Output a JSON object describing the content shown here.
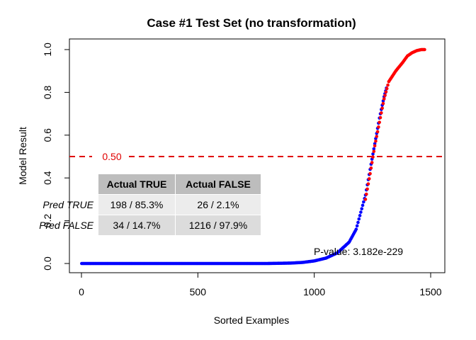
{
  "chart_data": {
    "type": "scatter",
    "title": "Case #1 Test Set (no transformation)",
    "xlabel": "Sorted Examples",
    "ylabel": "Model Result",
    "xlim": [
      0,
      1500
    ],
    "ylim": [
      0,
      1.0
    ],
    "xticks": [
      "0",
      "500",
      "1000",
      "1500"
    ],
    "yticks": [
      "0.0",
      "0.2",
      "0.4",
      "0.6",
      "0.8",
      "1.0"
    ],
    "threshold": {
      "value": 0.5,
      "label": "0.50",
      "color": "#e00000",
      "style": "dashed"
    },
    "series": [
      {
        "name": "",
        "color": "#0000ff",
        "points": [
          [
            1,
            0.0
          ],
          [
            200,
            0.0
          ],
          [
            400,
            0.0
          ],
          [
            600,
            0.0
          ],
          [
            800,
            0.0
          ],
          [
            900,
            0.002
          ],
          [
            950,
            0.005
          ],
          [
            1000,
            0.012
          ],
          [
            1050,
            0.025
          ],
          [
            1100,
            0.05
          ],
          [
            1150,
            0.1
          ],
          [
            1180,
            0.16
          ],
          [
            1200,
            0.24
          ],
          [
            1220,
            0.32
          ],
          [
            1240,
            0.44
          ],
          [
            1260,
            0.56
          ],
          [
            1280,
            0.68
          ],
          [
            1300,
            0.78
          ],
          [
            1310,
            0.82
          ]
        ]
      },
      {
        "name": "",
        "color": "#ff0000",
        "points": [
          [
            1220,
            0.3
          ],
          [
            1240,
            0.42
          ],
          [
            1260,
            0.55
          ],
          [
            1280,
            0.66
          ],
          [
            1300,
            0.77
          ],
          [
            1320,
            0.85
          ],
          [
            1350,
            0.9
          ],
          [
            1380,
            0.94
          ],
          [
            1400,
            0.97
          ],
          [
            1420,
            0.985
          ],
          [
            1440,
            0.995
          ],
          [
            1460,
            1.0
          ],
          [
            1474,
            1.0
          ]
        ]
      }
    ],
    "annotation": "P-value: 3.182e-229",
    "confusion_table": {
      "col_headers": [
        "Actual TRUE",
        "Actual FALSE"
      ],
      "rows": [
        {
          "label": "Pred TRUE",
          "cells": [
            "198 / 85.3%",
            "26 / 2.1%"
          ]
        },
        {
          "label": "Pred FALSE",
          "cells": [
            "34 / 14.7%",
            "1216 / 97.9%"
          ]
        }
      ]
    }
  }
}
